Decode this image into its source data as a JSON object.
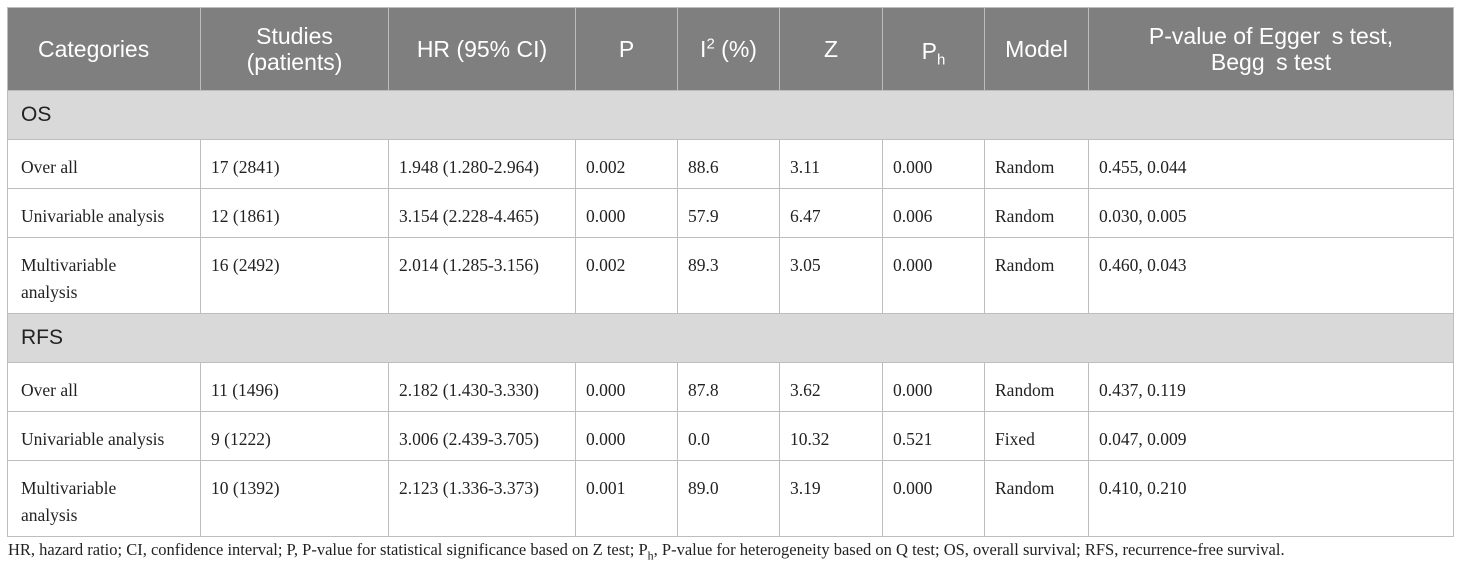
{
  "table": {
    "headers": {
      "categories": "Categories",
      "studies_line1": "Studies",
      "studies_line2": "(patients)",
      "hr": "HR (95% CI)",
      "p": "P",
      "i2_base": "I",
      "i2_sup": "2",
      "i2_suffix": " (%)",
      "z": "Z",
      "ph_base": "P",
      "ph_sub": "h",
      "model": "Model",
      "egger_line1": "P-value of Egger s test,",
      "egger_line2": "Begg s test"
    },
    "sections": [
      {
        "label": "OS",
        "rows": [
          {
            "category": "Over all",
            "studies": "17 (2841)",
            "hr": "1.948 (1.280-2.964)",
            "p": "0.002",
            "i2": "88.6",
            "z": "3.11",
            "ph": "0.000",
            "model": "Random",
            "egger_begg": "0.455, 0.044"
          },
          {
            "category": "Univariable analysis",
            "studies": "12 (1861)",
            "hr": "3.154 (2.228-4.465)",
            "p": "0.000",
            "i2": "57.9",
            "z": "6.47",
            "ph": "0.006",
            "model": "Random",
            "egger_begg": "0.030, 0.005"
          },
          {
            "category_line1": "Multivariable",
            "category_line2": "analysis",
            "studies": "16 (2492)",
            "hr": "2.014 (1.285-3.156)",
            "p": "0.002",
            "i2": "89.3",
            "z": "3.05",
            "ph": "0.000",
            "model": "Random",
            "egger_begg": "0.460, 0.043"
          }
        ]
      },
      {
        "label": "RFS",
        "rows": [
          {
            "category": "Over all",
            "studies": "11 (1496)",
            "hr": "2.182 (1.430-3.330)",
            "p": "0.000",
            "i2": "87.8",
            "z": "3.62",
            "ph": "0.000",
            "model": "Random",
            "egger_begg": "0.437, 0.119"
          },
          {
            "category": "Univariable analysis",
            "studies": "9 (1222)",
            "hr": "3.006 (2.439-3.705)",
            "p": "0.000",
            "i2": "0.0",
            "z": "10.32",
            "ph": "0.521",
            "model": "Fixed",
            "egger_begg": "0.047, 0.009"
          },
          {
            "category_line1": "Multivariable",
            "category_line2": "analysis",
            "studies": "10 (1392)",
            "hr": "2.123 (1.336-3.373)",
            "p": "0.001",
            "i2": "89.0",
            "z": "3.19",
            "ph": "0.000",
            "model": "Random",
            "egger_begg": "0.410, 0.210"
          }
        ]
      }
    ]
  },
  "footnote": {
    "part1": "HR, hazard ratio; CI, confidence interval; P, P-value for statistical significance based on Z test; P",
    "sub": "h",
    "part2": ", P-value for heterogeneity based on Q test; OS, overall survival; RFS, recurrence-free survival."
  }
}
